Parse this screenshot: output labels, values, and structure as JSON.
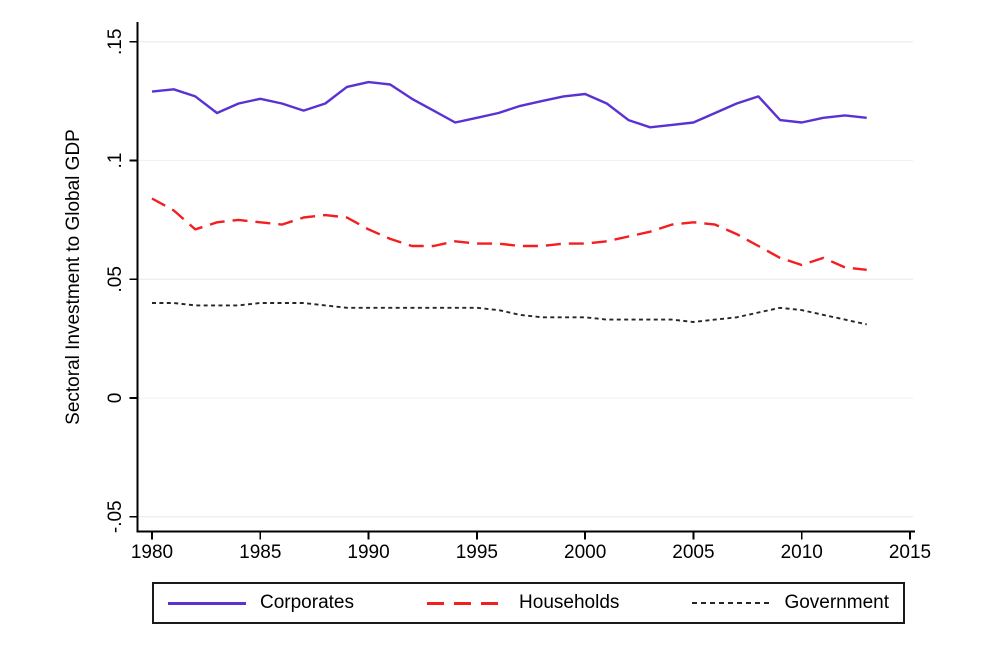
{
  "figure": {
    "background": "#ffffff",
    "axis_color": "#000000",
    "text_color": "#000000",
    "legend_border_color": "#1a1a1a"
  },
  "chart_data": {
    "type": "line",
    "title": "",
    "xlabel": "",
    "ylabel": "Sectoral Investment to Global GDP",
    "xlim": [
      1980,
      2015
    ],
    "ylim": [
      -0.05,
      0.15
    ],
    "grid": true,
    "gridline_color": "#eaf2f3",
    "legend_position": "bottom",
    "xticks": [
      1980,
      1985,
      1990,
      1995,
      2000,
      2005,
      2010,
      2015
    ],
    "xtick_labels": [
      "1980",
      "1985",
      "1990",
      "1995",
      "2000",
      "2005",
      "2010",
      "2015"
    ],
    "yticks": [
      0.15,
      0.1,
      0.05,
      0,
      -0.05
    ],
    "ytick_labels": [
      ".15",
      ".1",
      ".05",
      "0",
      "-.05"
    ],
    "x": [
      1980,
      1981,
      1982,
      1983,
      1984,
      1985,
      1986,
      1987,
      1988,
      1989,
      1990,
      1991,
      1992,
      1993,
      1994,
      1995,
      1996,
      1997,
      1998,
      1999,
      2000,
      2001,
      2002,
      2003,
      2004,
      2005,
      2006,
      2007,
      2008,
      2009,
      2010,
      2011,
      2012,
      2013
    ],
    "series": [
      {
        "name": "Corporates",
        "color": "#5a32d2",
        "style": "solid",
        "values": [
          0.129,
          0.13,
          0.127,
          0.12,
          0.124,
          0.126,
          0.124,
          0.121,
          0.124,
          0.131,
          0.133,
          0.132,
          0.126,
          0.121,
          0.116,
          0.118,
          0.12,
          0.123,
          0.125,
          0.127,
          0.128,
          0.124,
          0.117,
          0.114,
          0.115,
          0.116,
          0.12,
          0.124,
          0.127,
          0.117,
          0.116,
          0.118,
          0.119,
          0.118
        ]
      },
      {
        "name": "Households",
        "color": "#f41d20",
        "style": "long-dash",
        "values": [
          0.084,
          0.079,
          0.071,
          0.074,
          0.075,
          0.074,
          0.073,
          0.076,
          0.077,
          0.076,
          0.071,
          0.067,
          0.064,
          0.064,
          0.066,
          0.065,
          0.065,
          0.064,
          0.064,
          0.065,
          0.065,
          0.066,
          0.068,
          0.07,
          0.073,
          0.074,
          0.073,
          0.069,
          0.064,
          0.059,
          0.056,
          0.059,
          0.055,
          0.054
        ]
      },
      {
        "name": "Government",
        "color": "#262626",
        "style": "short-dash",
        "values": [
          0.04,
          0.04,
          0.039,
          0.039,
          0.039,
          0.04,
          0.04,
          0.04,
          0.039,
          0.038,
          0.038,
          0.038,
          0.038,
          0.038,
          0.038,
          0.038,
          0.037,
          0.035,
          0.034,
          0.034,
          0.034,
          0.033,
          0.033,
          0.033,
          0.033,
          0.032,
          0.033,
          0.034,
          0.036,
          0.038,
          0.037,
          0.035,
          0.033,
          0.031
        ]
      }
    ]
  }
}
